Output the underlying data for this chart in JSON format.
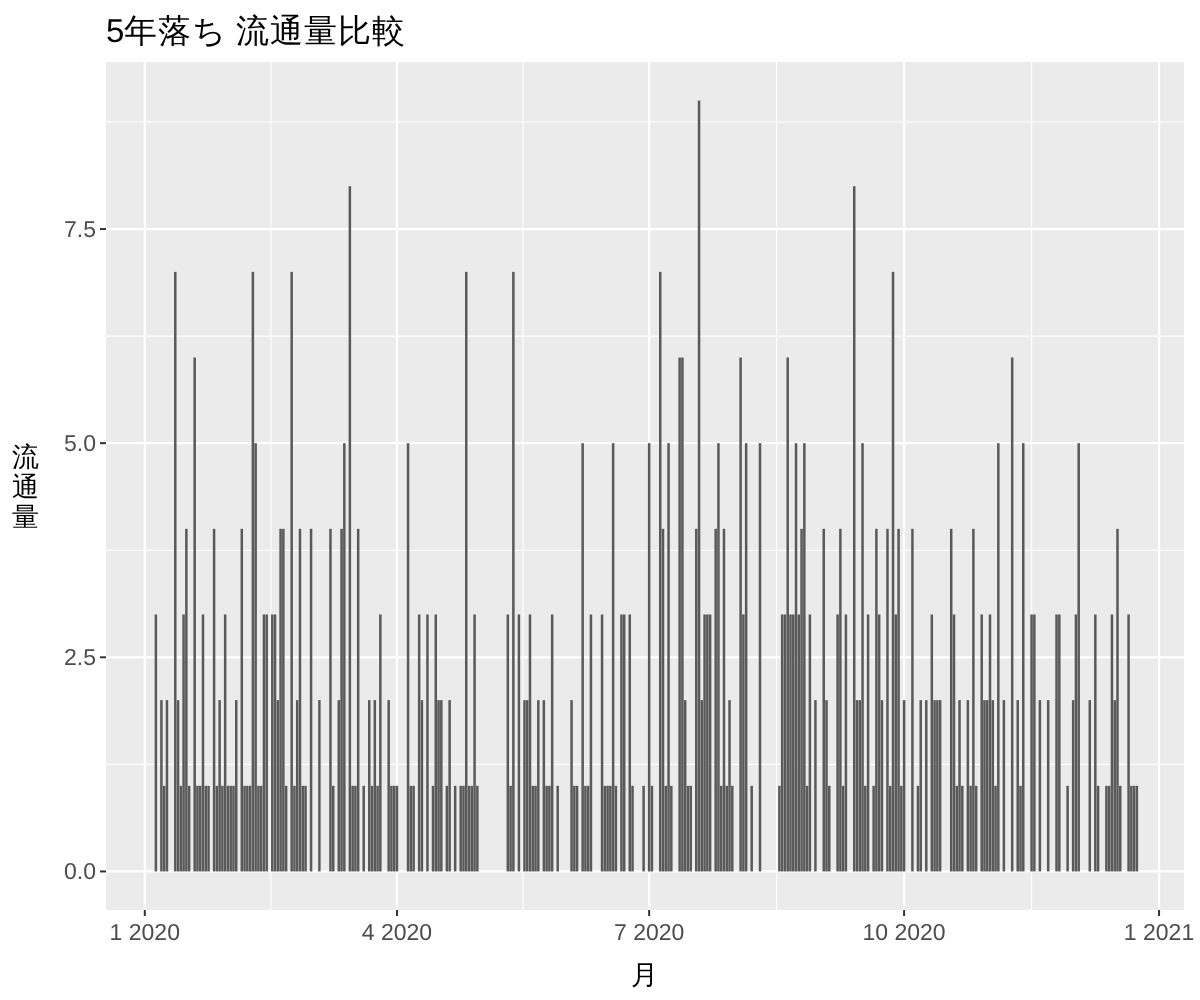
{
  "chart_data": {
    "type": "bar",
    "title": "5年落ち 流通量比較",
    "xlabel": "月",
    "ylabel": "流通量",
    "color": "#595959",
    "grid": true,
    "xlim": [
      "2019-12-18",
      "2021-01-10"
    ],
    "ylim": [
      -0.45,
      9.45
    ],
    "xticks": [
      {
        "value": "2020-01-01",
        "label": "1 2020"
      },
      {
        "value": "2020-04-01",
        "label": "4 2020"
      },
      {
        "value": "2020-07-01",
        "label": "7 2020"
      },
      {
        "value": "2020-10-01",
        "label": "10 2020"
      },
      {
        "value": "2021-01-01",
        "label": "1 2021"
      }
    ],
    "yticks": [
      {
        "value": 0,
        "label": "0.0"
      },
      2.5,
      {
        "value": 5,
        "label": "5.0"
      },
      7.5
    ],
    "x": [
      "2020-01-05",
      "2020-01-07",
      "2020-01-08",
      "2020-01-09",
      "2020-01-12",
      "2020-01-13",
      "2020-01-14",
      "2020-01-15",
      "2020-01-16",
      "2020-01-17",
      "2020-01-19",
      "2020-01-20",
      "2020-01-21",
      "2020-01-22",
      "2020-01-23",
      "2020-01-24",
      "2020-01-26",
      "2020-01-27",
      "2020-01-28",
      "2020-01-29",
      "2020-01-30",
      "2020-01-31",
      "2020-02-01",
      "2020-02-02",
      "2020-02-03",
      "2020-02-05",
      "2020-02-06",
      "2020-02-07",
      "2020-02-08",
      "2020-02-09",
      "2020-02-10",
      "2020-02-11",
      "2020-02-12",
      "2020-02-13",
      "2020-02-14",
      "2020-02-16",
      "2020-02-17",
      "2020-02-18",
      "2020-02-19",
      "2020-02-20",
      "2020-02-21",
      "2020-02-23",
      "2020-02-24",
      "2020-02-25",
      "2020-02-26",
      "2020-02-27",
      "2020-02-28",
      "2020-03-01",
      "2020-03-04",
      "2020-03-08",
      "2020-03-09",
      "2020-03-11",
      "2020-03-12",
      "2020-03-13",
      "2020-03-15",
      "2020-03-16",
      "2020-03-17",
      "2020-03-18",
      "2020-03-20",
      "2020-03-22",
      "2020-03-23",
      "2020-03-24",
      "2020-03-25",
      "2020-03-26",
      "2020-03-29",
      "2020-03-30",
      "2020-03-31",
      "2020-04-01",
      "2020-04-05",
      "2020-04-06",
      "2020-04-07",
      "2020-04-09",
      "2020-04-10",
      "2020-04-12",
      "2020-04-14",
      "2020-04-15",
      "2020-04-16",
      "2020-04-17",
      "2020-04-19",
      "2020-04-20",
      "2020-04-22",
      "2020-04-24",
      "2020-04-25",
      "2020-04-26",
      "2020-04-27",
      "2020-04-28",
      "2020-04-29",
      "2020-04-30",
      "2020-05-11",
      "2020-05-12",
      "2020-05-13",
      "2020-05-15",
      "2020-05-17",
      "2020-05-18",
      "2020-05-19",
      "2020-05-20",
      "2020-05-21",
      "2020-05-22",
      "2020-05-24",
      "2020-05-25",
      "2020-05-26",
      "2020-05-27",
      "2020-05-29",
      "2020-06-03",
      "2020-06-04",
      "2020-06-05",
      "2020-06-07",
      "2020-06-08",
      "2020-06-09",
      "2020-06-10",
      "2020-06-14",
      "2020-06-15",
      "2020-06-16",
      "2020-06-17",
      "2020-06-18",
      "2020-06-19",
      "2020-06-21",
      "2020-06-22",
      "2020-06-24",
      "2020-06-25",
      "2020-06-29",
      "2020-07-01",
      "2020-07-02",
      "2020-07-05",
      "2020-07-06",
      "2020-07-07",
      "2020-07-08",
      "2020-07-09",
      "2020-07-12",
      "2020-07-13",
      "2020-07-14",
      "2020-07-15",
      "2020-07-16",
      "2020-07-18",
      "2020-07-19",
      "2020-07-20",
      "2020-07-21",
      "2020-07-22",
      "2020-07-23",
      "2020-07-25",
      "2020-07-26",
      "2020-07-27",
      "2020-07-28",
      "2020-07-29",
      "2020-07-30",
      "2020-07-31",
      "2020-08-03",
      "2020-08-04",
      "2020-08-05",
      "2020-08-07",
      "2020-08-10",
      "2020-08-17",
      "2020-08-18",
      "2020-08-19",
      "2020-08-20",
      "2020-08-21",
      "2020-08-22",
      "2020-08-23",
      "2020-08-24",
      "2020-08-25",
      "2020-08-26",
      "2020-08-27",
      "2020-08-28",
      "2020-08-30",
      "2020-09-02",
      "2020-09-03",
      "2020-09-04",
      "2020-09-07",
      "2020-09-08",
      "2020-09-09",
      "2020-09-10",
      "2020-09-13",
      "2020-09-14",
      "2020-09-15",
      "2020-09-16",
      "2020-09-17",
      "2020-09-18",
      "2020-09-20",
      "2020-09-21",
      "2020-09-22",
      "2020-09-23",
      "2020-09-25",
      "2020-09-26",
      "2020-09-27",
      "2020-09-28",
      "2020-09-29",
      "2020-09-30",
      "2020-10-01",
      "2020-10-04",
      "2020-10-06",
      "2020-10-07",
      "2020-10-09",
      "2020-10-11",
      "2020-10-12",
      "2020-10-13",
      "2020-10-14",
      "2020-10-18",
      "2020-10-19",
      "2020-10-20",
      "2020-10-21",
      "2020-10-22",
      "2020-10-24",
      "2020-10-25",
      "2020-10-26",
      "2020-10-27",
      "2020-10-29",
      "2020-10-30",
      "2020-10-31",
      "2020-11-01",
      "2020-11-02",
      "2020-11-03",
      "2020-11-04",
      "2020-11-06",
      "2020-11-09",
      "2020-11-11",
      "2020-11-12",
      "2020-11-13",
      "2020-11-16",
      "2020-11-17",
      "2020-11-19",
      "2020-11-22",
      "2020-11-25",
      "2020-11-26",
      "2020-11-29",
      "2020-12-01",
      "2020-12-02",
      "2020-12-03",
      "2020-12-07",
      "2020-12-09",
      "2020-12-10",
      "2020-12-13",
      "2020-12-14",
      "2020-12-15",
      "2020-12-16",
      "2020-12-17",
      "2020-12-18",
      "2020-12-21",
      "2020-12-22",
      "2020-12-23",
      "2020-12-24"
    ],
    "values": [
      3,
      2,
      1,
      2,
      7,
      2,
      1,
      3,
      4,
      1,
      6,
      1,
      1,
      3,
      1,
      1,
      4,
      1,
      2,
      1,
      3,
      1,
      1,
      1,
      2,
      4,
      1,
      1,
      1,
      7,
      5,
      1,
      1,
      3,
      3,
      3,
      3,
      2,
      4,
      4,
      1,
      7,
      1,
      2,
      4,
      1,
      1,
      4,
      2,
      4,
      1,
      2,
      4,
      5,
      8,
      1,
      1,
      4,
      1,
      2,
      1,
      2,
      1,
      3,
      2,
      1,
      1,
      1,
      5,
      1,
      1,
      3,
      2,
      3,
      1,
      3,
      2,
      2,
      1,
      2,
      1,
      1,
      1,
      7,
      1,
      1,
      3,
      1,
      3,
      1,
      7,
      3,
      2,
      2,
      3,
      1,
      1,
      2,
      2,
      1,
      1,
      3,
      1,
      2,
      1,
      1,
      5,
      1,
      1,
      3,
      3,
      1,
      1,
      1,
      5,
      1,
      3,
      3,
      3,
      1,
      1,
      5,
      1,
      7,
      4,
      1,
      5,
      1,
      6,
      6,
      2,
      1,
      1,
      4,
      9,
      2,
      3,
      3,
      3,
      4,
      5,
      1,
      4,
      1,
      2,
      1,
      6,
      3,
      5,
      1,
      5,
      1,
      3,
      3,
      6,
      3,
      3,
      5,
      3,
      4,
      5,
      1,
      3,
      2,
      4,
      2,
      1,
      3,
      4,
      1,
      3,
      8,
      2,
      2,
      5,
      1,
      3,
      1,
      4,
      3,
      2,
      4,
      1,
      7,
      3,
      4,
      1,
      2,
      4,
      1,
      2,
      2,
      3,
      2,
      2,
      2,
      4,
      3,
      1,
      2,
      1,
      2,
      1,
      4,
      1,
      3,
      2,
      2,
      3,
      2,
      1,
      5,
      2,
      6,
      2,
      1,
      5,
      3,
      3,
      2,
      2,
      3,
      3,
      1,
      2,
      3,
      5,
      2,
      3,
      1,
      1,
      1,
      3,
      2,
      4,
      1,
      3,
      1,
      1,
      1
    ]
  }
}
